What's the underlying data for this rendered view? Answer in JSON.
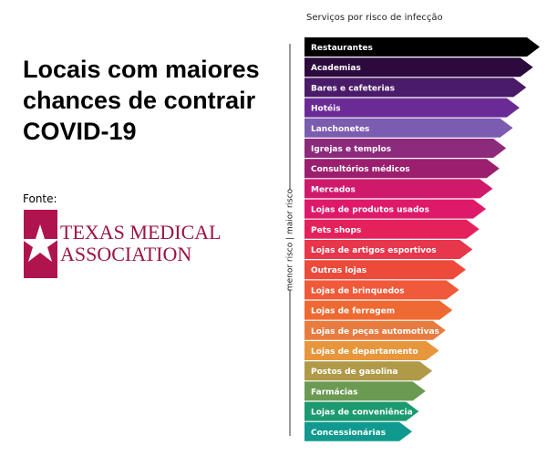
{
  "title": [
    "Locais com maiores",
    "chances de contrair",
    "COVID-19"
  ],
  "source": {
    "label": "Fonte:",
    "logo": [
      "TEXAS MEDICAL",
      "ASSOCIATION"
    ]
  },
  "ranking": {
    "title": "Serviços por risco de infecção",
    "axis_label": "menor risco | maior risco",
    "items": [
      {
        "label": "Restaurantes",
        "color": "#000000"
      },
      {
        "label": "Academias",
        "color": "#2c0a3e"
      },
      {
        "label": "Bares e cafeterias",
        "color": "#4a1b68"
      },
      {
        "label": "Hotéis",
        "color": "#6a2b96"
      },
      {
        "label": "Lanchonetes",
        "color": "#7b5cb0"
      },
      {
        "label": "Igrejas e templos",
        "color": "#8c2a7c"
      },
      {
        "label": "Consultórios médicos",
        "color": "#9b1f6e"
      },
      {
        "label": "Mercados",
        "color": "#cf1a6c"
      },
      {
        "label": "Lojas de produtos usados",
        "color": "#df196a"
      },
      {
        "label": "Pets shops",
        "color": "#e5215b"
      },
      {
        "label": "Lojas de artigos esportivos",
        "color": "#e8364c"
      },
      {
        "label": "Outras lojas",
        "color": "#ed4a3c"
      },
      {
        "label": "Lojas de brinquedos",
        "color": "#f05a3a"
      },
      {
        "label": "Lojas de ferragem",
        "color": "#ee6a32"
      },
      {
        "label": "Lojas de peças automotivas",
        "color": "#e87c40"
      },
      {
        "label": "Lojas de departamento",
        "color": "#e8963c"
      },
      {
        "label": "Postos de gasolina",
        "color": "#b09a48"
      },
      {
        "label": "Farmácias",
        "color": "#6b9a52"
      },
      {
        "label": "Lojas de conveniência",
        "color": "#1b9a70"
      },
      {
        "label": "Concessionárias",
        "color": "#10998f"
      }
    ]
  }
}
